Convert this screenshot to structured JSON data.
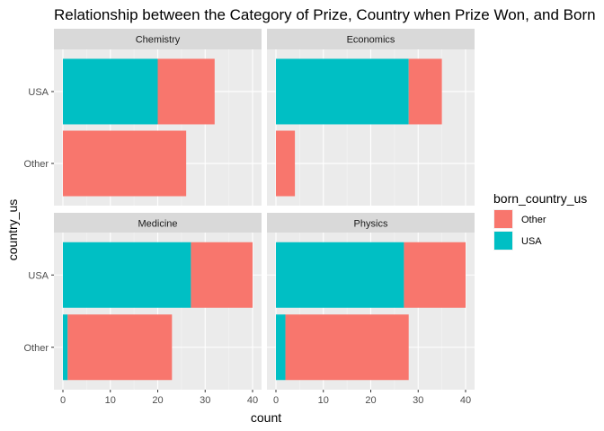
{
  "chart_data": {
    "type": "bar",
    "orientation": "horizontal",
    "stacked": true,
    "title": "Relationship between the Category of Prize, Country when Prize Won, and Born",
    "xlabel": "count",
    "ylabel": "country_us",
    "xlim": [
      0,
      40
    ],
    "x_ticks": [
      0,
      10,
      20,
      30,
      40
    ],
    "categories": [
      "USA",
      "Other"
    ],
    "legend": {
      "title": "born_country_us",
      "position": "right",
      "entries": [
        {
          "label": "Other",
          "color": "#F8766D"
        },
        {
          "label": "USA",
          "color": "#00BFC4"
        }
      ]
    },
    "grid": true,
    "panels": [
      {
        "name": "Chemistry",
        "bars": [
          {
            "category": "USA",
            "USA": 20,
            "Other": 12
          },
          {
            "category": "Other",
            "USA": 0,
            "Other": 26
          }
        ]
      },
      {
        "name": "Economics",
        "bars": [
          {
            "category": "USA",
            "USA": 28,
            "Other": 7
          },
          {
            "category": "Other",
            "USA": 0,
            "Other": 4
          }
        ]
      },
      {
        "name": "Medicine",
        "bars": [
          {
            "category": "USA",
            "USA": 27,
            "Other": 13
          },
          {
            "category": "Other",
            "USA": 1,
            "Other": 22
          }
        ]
      },
      {
        "name": "Physics",
        "bars": [
          {
            "category": "USA",
            "USA": 27,
            "Other": 13
          },
          {
            "category": "Other",
            "USA": 2,
            "Other": 26
          }
        ]
      }
    ]
  }
}
